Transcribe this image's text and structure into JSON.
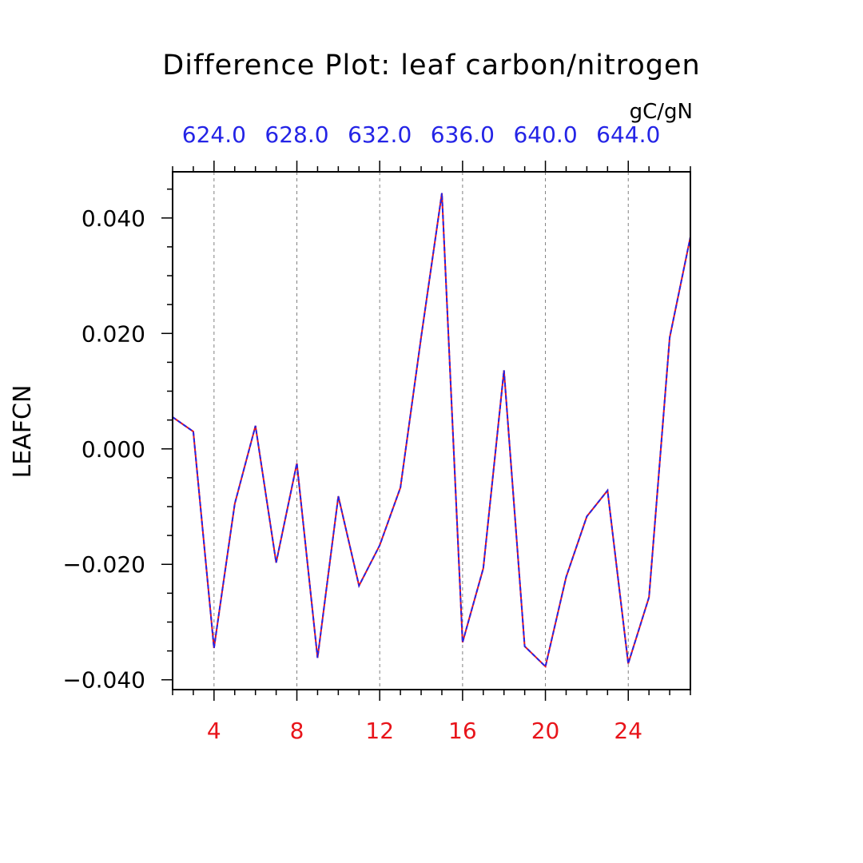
{
  "chart_data": {
    "type": "line",
    "title": "Difference Plot: leaf carbon/nitrogen",
    "units": "gC/gN",
    "ylabel": "LEAFCN",
    "xlabel": "",
    "xlim": [
      2,
      27
    ],
    "ylim": [
      -0.0417,
      0.048
    ],
    "x_ticks": [
      4,
      8,
      12,
      16,
      20,
      24
    ],
    "x_tick_labels": [
      "4",
      "8",
      "12",
      "16",
      "20",
      "24"
    ],
    "x_minor_step": 1,
    "y_ticks": [
      -0.04,
      -0.02,
      0.0,
      0.02,
      0.04
    ],
    "y_tick_labels": [
      "−0.040",
      "−0.020",
      "0.000",
      "0.020",
      "0.040"
    ],
    "y_minor_step": 0.005,
    "top_axis_tick_labels": [
      "624.0",
      "628.0",
      "632.0",
      "636.0",
      "640.0",
      "644.0"
    ],
    "grid": "vertical dashed at major x ticks",
    "line_colors": [
      "#e8141a",
      "#2424e6"
    ],
    "x": [
      2,
      3,
      4,
      5,
      6,
      7,
      8,
      9,
      10,
      11,
      12,
      13,
      14,
      15,
      16,
      17,
      18,
      19,
      20,
      21,
      22,
      23,
      24,
      25,
      26,
      27
    ],
    "series": [
      {
        "values": [
          0.0055,
          0.003,
          -0.0345,
          -0.0095,
          0.004,
          -0.0197,
          -0.0025,
          -0.0362,
          -0.0082,
          -0.0237,
          -0.0167,
          -0.0067,
          0.0193,
          0.0443,
          -0.0335,
          -0.0207,
          0.0136,
          -0.0342,
          -0.0377,
          -0.0222,
          -0.0117,
          -0.0072,
          -0.0372,
          -0.0257,
          0.0193,
          0.0367
        ]
      }
    ]
  }
}
